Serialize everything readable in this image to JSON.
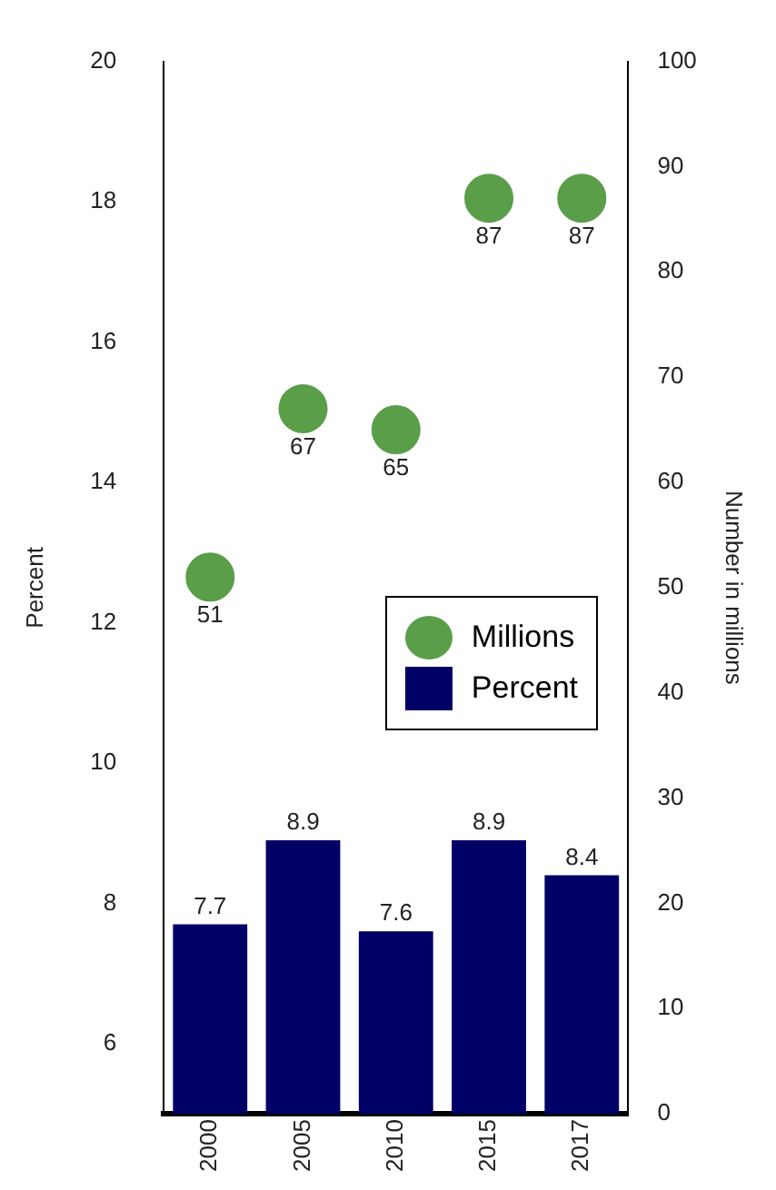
{
  "chart_data": {
    "type": "bar",
    "categories": [
      "2000",
      "2005",
      "2010",
      "2015",
      "2017"
    ],
    "series": [
      {
        "name": "Millions",
        "type": "scatter",
        "axis": "y2",
        "color": "#5a9e4a",
        "values": [
          51,
          67,
          65,
          87,
          87
        ]
      },
      {
        "name": "Percent",
        "color": "#000066",
        "values": [
          7.7,
          8.9,
          7.6,
          8.9,
          8.4
        ]
      }
    ],
    "ylabel": "Percent",
    "y2label": "Number in millions",
    "ylim": [
      5,
      20
    ],
    "yticks": [
      6,
      8,
      10,
      12,
      14,
      16,
      18,
      20
    ],
    "y2lim": [
      0,
      100
    ],
    "y2ticks": [
      0,
      10,
      20,
      30,
      40,
      50,
      60,
      70,
      80,
      90,
      100
    ],
    "data_labels": true,
    "legend": "right",
    "grid": false,
    "marker": "circle"
  }
}
